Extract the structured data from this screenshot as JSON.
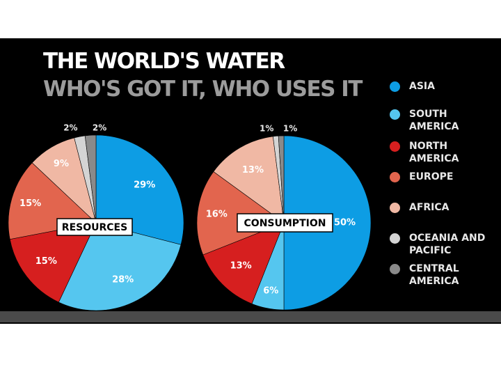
{
  "title": "THE WORLD'S WATER",
  "subtitle": "WHO'S GOT IT, WHO USES IT",
  "colors": {
    "background": "#000000",
    "title": "#ffffff",
    "subtitle": "#9c9c9c",
    "asia": "#0d9de4",
    "south_america": "#55c6ef",
    "north_america": "#d61f1f",
    "europe": "#e2654e",
    "africa": "#f0b8a4",
    "oceania": "#d4d4d4",
    "central_america": "#8a8a8a"
  },
  "legend": [
    {
      "label": "ASIA",
      "color": "#0d9de4"
    },
    {
      "label": "SOUTH\nAMERICA",
      "color": "#55c6ef"
    },
    {
      "label": "NORTH\nAMERICA",
      "color": "#d61f1f"
    },
    {
      "label": "EUROPE",
      "color": "#e2654e"
    },
    {
      "label": "AFRICA",
      "color": "#f0b8a4"
    },
    {
      "label": "OCEANIA AND\nPACIFIC",
      "color": "#d4d4d4"
    },
    {
      "label": "CENTRAL\nAMERICA",
      "color": "#8a8a8a"
    }
  ],
  "chart_data": [
    {
      "type": "pie",
      "title": "RESOURCES",
      "labels": [
        "ASIA",
        "SOUTH AMERICA",
        "NORTH AMERICA",
        "EUROPE",
        "AFRICA",
        "OCEANIA AND PACIFIC",
        "CENTRAL AMERICA"
      ],
      "values": [
        29,
        28,
        15,
        15,
        9,
        2,
        2
      ],
      "value_labels": [
        "29%",
        "28%",
        "15%",
        "15%",
        "9%",
        "2%",
        "2%"
      ],
      "legend": "right"
    },
    {
      "type": "pie",
      "title": "CONSUMPTION",
      "labels": [
        "ASIA",
        "SOUTH AMERICA",
        "NORTH AMERICA",
        "EUROPE",
        "AFRICA",
        "OCEANIA AND PACIFIC",
        "CENTRAL AMERICA"
      ],
      "values": [
        50,
        6,
        13,
        16,
        13,
        1,
        1
      ],
      "value_labels": [
        "50%",
        "6%",
        "13%",
        "16%",
        "13%",
        "1%",
        "1%"
      ],
      "legend": "right"
    }
  ]
}
